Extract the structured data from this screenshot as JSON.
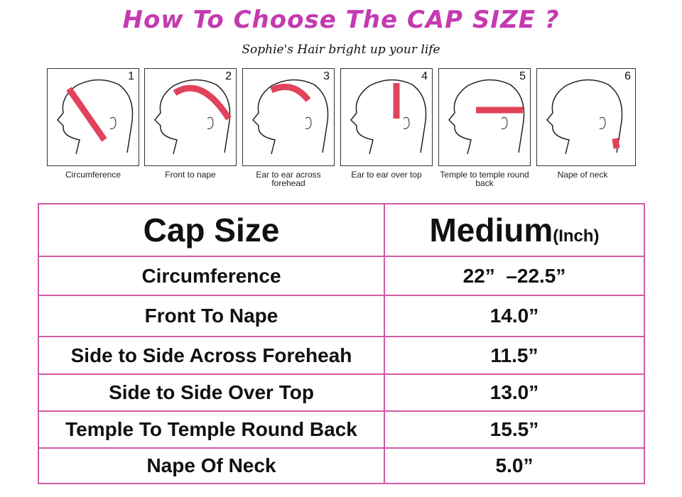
{
  "title": "How To Choose The CAP SIZE ?",
  "subtitle": "Sophie's Hair bright up your life",
  "steps": [
    {
      "num": "1",
      "label": "Circumference"
    },
    {
      "num": "2",
      "label": "Front to nape"
    },
    {
      "num": "3",
      "label": "Ear to ear across forehead"
    },
    {
      "num": "4",
      "label": "Ear to ear over top"
    },
    {
      "num": "5",
      "label": "Temple to temple round back"
    },
    {
      "num": "6",
      "label": "Nape of neck"
    }
  ],
  "table": {
    "header": {
      "left": "Cap Size",
      "right": "Medium",
      "unit": "(Inch)"
    },
    "rows": [
      {
        "name": "Circumference",
        "value": "22”  –22.5”"
      },
      {
        "name": "Front To Nape",
        "value": "14.0”"
      },
      {
        "name": "Side to Side Across Foreheah",
        "value": "11.5”"
      },
      {
        "name": "Side to Side Over Top",
        "value": "13.0”"
      },
      {
        "name": "Temple To Temple Round Back",
        "value": "15.5”"
      },
      {
        "name": "Nape Of Neck",
        "value": "5.0”"
      }
    ]
  },
  "colors": {
    "title": "#c43ab0",
    "border": "#d45aa8",
    "tape": "#e0435a"
  }
}
